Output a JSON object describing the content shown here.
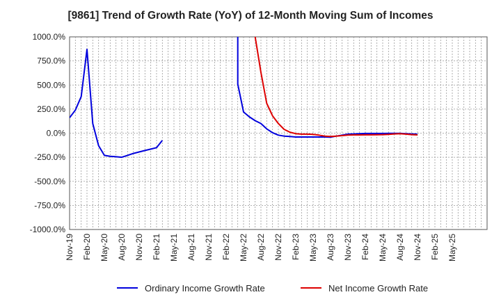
{
  "chart_data": {
    "type": "line",
    "title": "[9861]  Trend of Growth Rate (YoY) of 12-Month Moving Sum of Incomes",
    "ylim": [
      -1000,
      1000
    ],
    "y_ticks": [
      1000,
      750,
      500,
      250,
      0,
      -250,
      -500,
      -750,
      -1000
    ],
    "y_tick_labels": [
      "1000.0%",
      "750.0%",
      "500.0%",
      "250.0%",
      "0.0%",
      "-250.0%",
      "-500.0%",
      "-750.0%",
      "-1000.0%"
    ],
    "x_start": "Nov-19",
    "x_end": "Nov-25",
    "x_tick_labels": [
      "Nov-19",
      "Feb-20",
      "May-20",
      "Aug-20",
      "Nov-20",
      "Feb-21",
      "May-21",
      "Aug-21",
      "Nov-21",
      "Feb-22",
      "May-22",
      "Aug-22",
      "Nov-22",
      "Feb-23",
      "May-23",
      "Aug-23",
      "Nov-23",
      "Feb-24",
      "May-24",
      "Aug-24",
      "Nov-24",
      "Feb-25",
      "May-25"
    ],
    "grid": true,
    "legend_position": "bottom",
    "series": [
      {
        "name": "Ordinary Income Growth Rate",
        "color": "#0000dd",
        "points": [
          [
            "Nov-19",
            160
          ],
          [
            "Dec-19",
            240
          ],
          [
            "Jan-20",
            380
          ],
          [
            "Feb-20",
            870
          ],
          [
            "Mar-20",
            100
          ],
          [
            "Apr-20",
            -130
          ],
          [
            "May-20",
            -230
          ],
          [
            "Jun-20",
            -240
          ],
          [
            "Jul-20",
            -245
          ],
          [
            "Aug-20",
            -250
          ],
          [
            "Sep-20",
            -230
          ],
          [
            "Oct-20",
            -210
          ],
          [
            "Nov-20",
            -195
          ],
          [
            "Dec-20",
            -180
          ],
          [
            "Jan-21",
            -165
          ],
          [
            "Feb-21",
            -150
          ],
          [
            "Mar-21",
            -75
          ],
          null,
          [
            "Apr-22",
            1000
          ],
          [
            "Apr-22",
            510
          ],
          [
            "May-22",
            220
          ],
          [
            "Jun-22",
            170
          ],
          [
            "Jul-22",
            130
          ],
          [
            "Aug-22",
            100
          ],
          [
            "Sep-22",
            45
          ],
          [
            "Oct-22",
            5
          ],
          [
            "Nov-22",
            -20
          ],
          [
            "Dec-22",
            -30
          ],
          [
            "Jan-23",
            -35
          ],
          [
            "Feb-23",
            -40
          ],
          [
            "Mar-23",
            -40
          ],
          [
            "Apr-23",
            -40
          ],
          [
            "May-23",
            -40
          ],
          [
            "Jun-23",
            -40
          ],
          [
            "Jul-23",
            -40
          ],
          [
            "Aug-23",
            -42
          ],
          [
            "Sep-23",
            -30
          ],
          [
            "Oct-23",
            -20
          ],
          [
            "Nov-23",
            -10
          ],
          [
            "Dec-23",
            -8
          ],
          [
            "Jan-24",
            -5
          ],
          [
            "Feb-24",
            -3
          ],
          [
            "Mar-24",
            -3
          ],
          [
            "Apr-24",
            -3
          ],
          [
            "May-24",
            -3
          ],
          [
            "Jun-24",
            -2
          ],
          [
            "Jul-24",
            -2
          ],
          [
            "Aug-24",
            -2
          ],
          [
            "Sep-24",
            -5
          ],
          [
            "Oct-24",
            -8
          ],
          [
            "Nov-24",
            -10
          ]
        ]
      },
      {
        "name": "Net Income Growth Rate",
        "color": "#dd0000",
        "points": [
          [
            "Jul-22",
            1000
          ],
          [
            "Aug-22",
            630
          ],
          [
            "Sep-22",
            310
          ],
          [
            "Oct-22",
            180
          ],
          [
            "Nov-22",
            100
          ],
          [
            "Dec-22",
            40
          ],
          [
            "Jan-23",
            10
          ],
          [
            "Feb-23",
            -5
          ],
          [
            "Mar-23",
            -10
          ],
          [
            "Apr-23",
            -10
          ],
          [
            "May-23",
            -12
          ],
          [
            "Jun-23",
            -20
          ],
          [
            "Jul-23",
            -30
          ],
          [
            "Aug-23",
            -35
          ],
          [
            "Sep-23",
            -30
          ],
          [
            "Oct-23",
            -25
          ],
          [
            "Nov-23",
            -20
          ],
          [
            "Dec-23",
            -18
          ],
          [
            "Jan-24",
            -18
          ],
          [
            "Feb-24",
            -17
          ],
          [
            "Mar-24",
            -17
          ],
          [
            "Apr-24",
            -16
          ],
          [
            "May-24",
            -15
          ],
          [
            "Jun-24",
            -12
          ],
          [
            "Jul-24",
            -8
          ],
          [
            "Aug-24",
            -5
          ],
          [
            "Sep-24",
            -10
          ],
          [
            "Oct-24",
            -15
          ],
          [
            "Nov-24",
            -18
          ]
        ]
      }
    ]
  }
}
